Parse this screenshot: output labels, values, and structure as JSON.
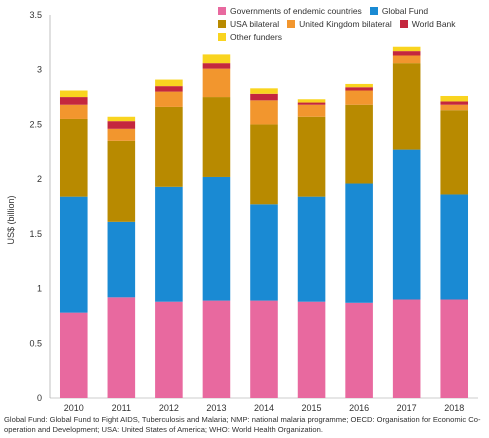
{
  "chart_data": {
    "type": "bar",
    "stacked": true,
    "categories": [
      "2010",
      "2011",
      "2012",
      "2013",
      "2014",
      "2015",
      "2016",
      "2017",
      "2018"
    ],
    "ylabel": "US$ (billion)",
    "ylim": [
      0,
      3.5
    ],
    "yticks": [
      "0",
      "0.5",
      "1",
      "1.5",
      "2",
      "2.5",
      "3",
      "3.5"
    ],
    "grid": false,
    "legend_position": "top-right",
    "series": [
      {
        "name": "Governments of endemic countries",
        "color": "#e8699f",
        "values": [
          0.78,
          0.92,
          0.88,
          0.89,
          0.89,
          0.88,
          0.87,
          0.9,
          0.9
        ]
      },
      {
        "name": "Global Fund",
        "color": "#1a8ad3",
        "values": [
          1.06,
          0.69,
          1.05,
          1.13,
          0.88,
          0.96,
          1.09,
          1.37,
          0.96
        ]
      },
      {
        "name": "USA bilateral",
        "color": "#b88a00",
        "values": [
          0.71,
          0.74,
          0.73,
          0.73,
          0.73,
          0.73,
          0.72,
          0.79,
          0.77
        ]
      },
      {
        "name": "United Kingdom bilateral",
        "color": "#f2962e",
        "values": [
          0.13,
          0.11,
          0.14,
          0.26,
          0.22,
          0.11,
          0.13,
          0.07,
          0.05
        ]
      },
      {
        "name": "World Bank",
        "color": "#c4273e",
        "values": [
          0.07,
          0.07,
          0.05,
          0.05,
          0.06,
          0.02,
          0.03,
          0.04,
          0.03
        ]
      },
      {
        "name": "Other funders",
        "color": "#f9d41f",
        "values": [
          0.06,
          0.04,
          0.06,
          0.08,
          0.05,
          0.03,
          0.03,
          0.04,
          0.05
        ]
      }
    ]
  },
  "footnote": "Global Fund: Global Fund to Fight AIDS, Tuberculosis and Malaria; NMP: national malaria programme; OECD: Organisation for Economic Co-operation and Development; USA: United States of America; WHO: World Health Organization."
}
